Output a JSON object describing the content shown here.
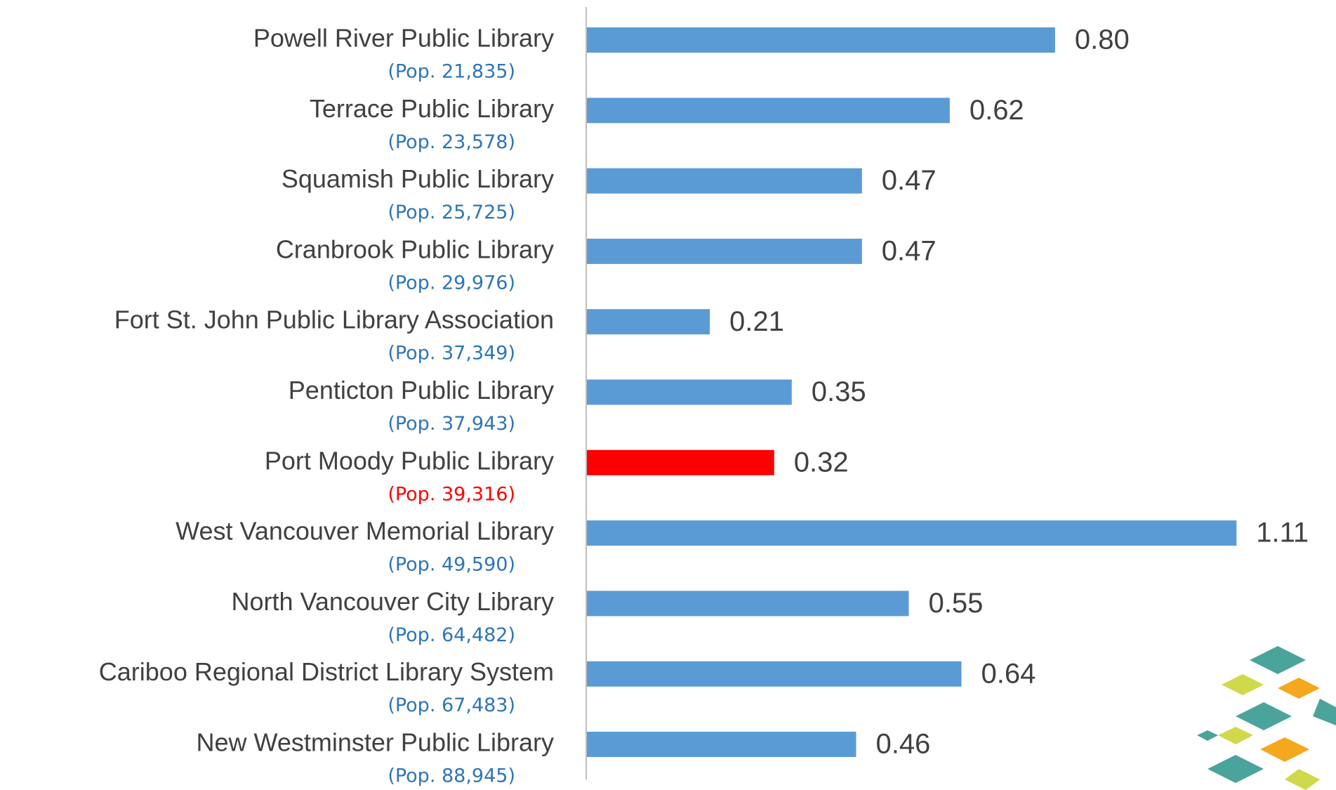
{
  "chart_data": {
    "type": "barh",
    "categories": [
      "Powell River Public Library",
      "Terrace Public Library",
      "Squamish Public Library",
      "Cranbrook Public Library",
      "Fort St. John Public Library Association",
      "Penticton Public Library",
      "Port Moody Public Library",
      "West Vancouver Memorial Library",
      "North Vancouver City Library",
      "Cariboo Regional District Library System",
      "New Westminster Public Library"
    ],
    "populations": [
      "(Pop. 21,835)",
      "(Pop. 23,578)",
      "(Pop. 25,725)",
      "(Pop. 29,976)",
      "(Pop. 37,349)",
      "(Pop. 37,943)",
      "(Pop. 39,316)",
      "(Pop. 49,590)",
      "(Pop. 64,482)",
      "(Pop. 67,483)",
      "(Pop. 88,945)"
    ],
    "values": [
      0.8,
      0.62,
      0.47,
      0.47,
      0.21,
      0.35,
      0.32,
      1.11,
      0.55,
      0.64,
      0.46
    ],
    "value_labels": [
      "0.80",
      "0.62",
      "0.47",
      "0.47",
      "0.21",
      "0.35",
      "0.32",
      "1.11",
      "0.55",
      "0.64",
      "0.46"
    ],
    "bar_colors": [
      "#5b9bd5",
      "#5b9bd5",
      "#5b9bd5",
      "#5b9bd5",
      "#5b9bd5",
      "#5b9bd5",
      "#ff0000",
      "#5b9bd5",
      "#5b9bd5",
      "#5b9bd5",
      "#5b9bd5"
    ],
    "population_colors": [
      "#2e75b6",
      "#2e75b6",
      "#2e75b6",
      "#2e75b6",
      "#2e75b6",
      "#2e75b6",
      "#ff0000",
      "#2e75b6",
      "#2e75b6",
      "#2e75b6",
      "#2e75b6"
    ],
    "xlim": [
      0,
      1.28
    ]
  }
}
